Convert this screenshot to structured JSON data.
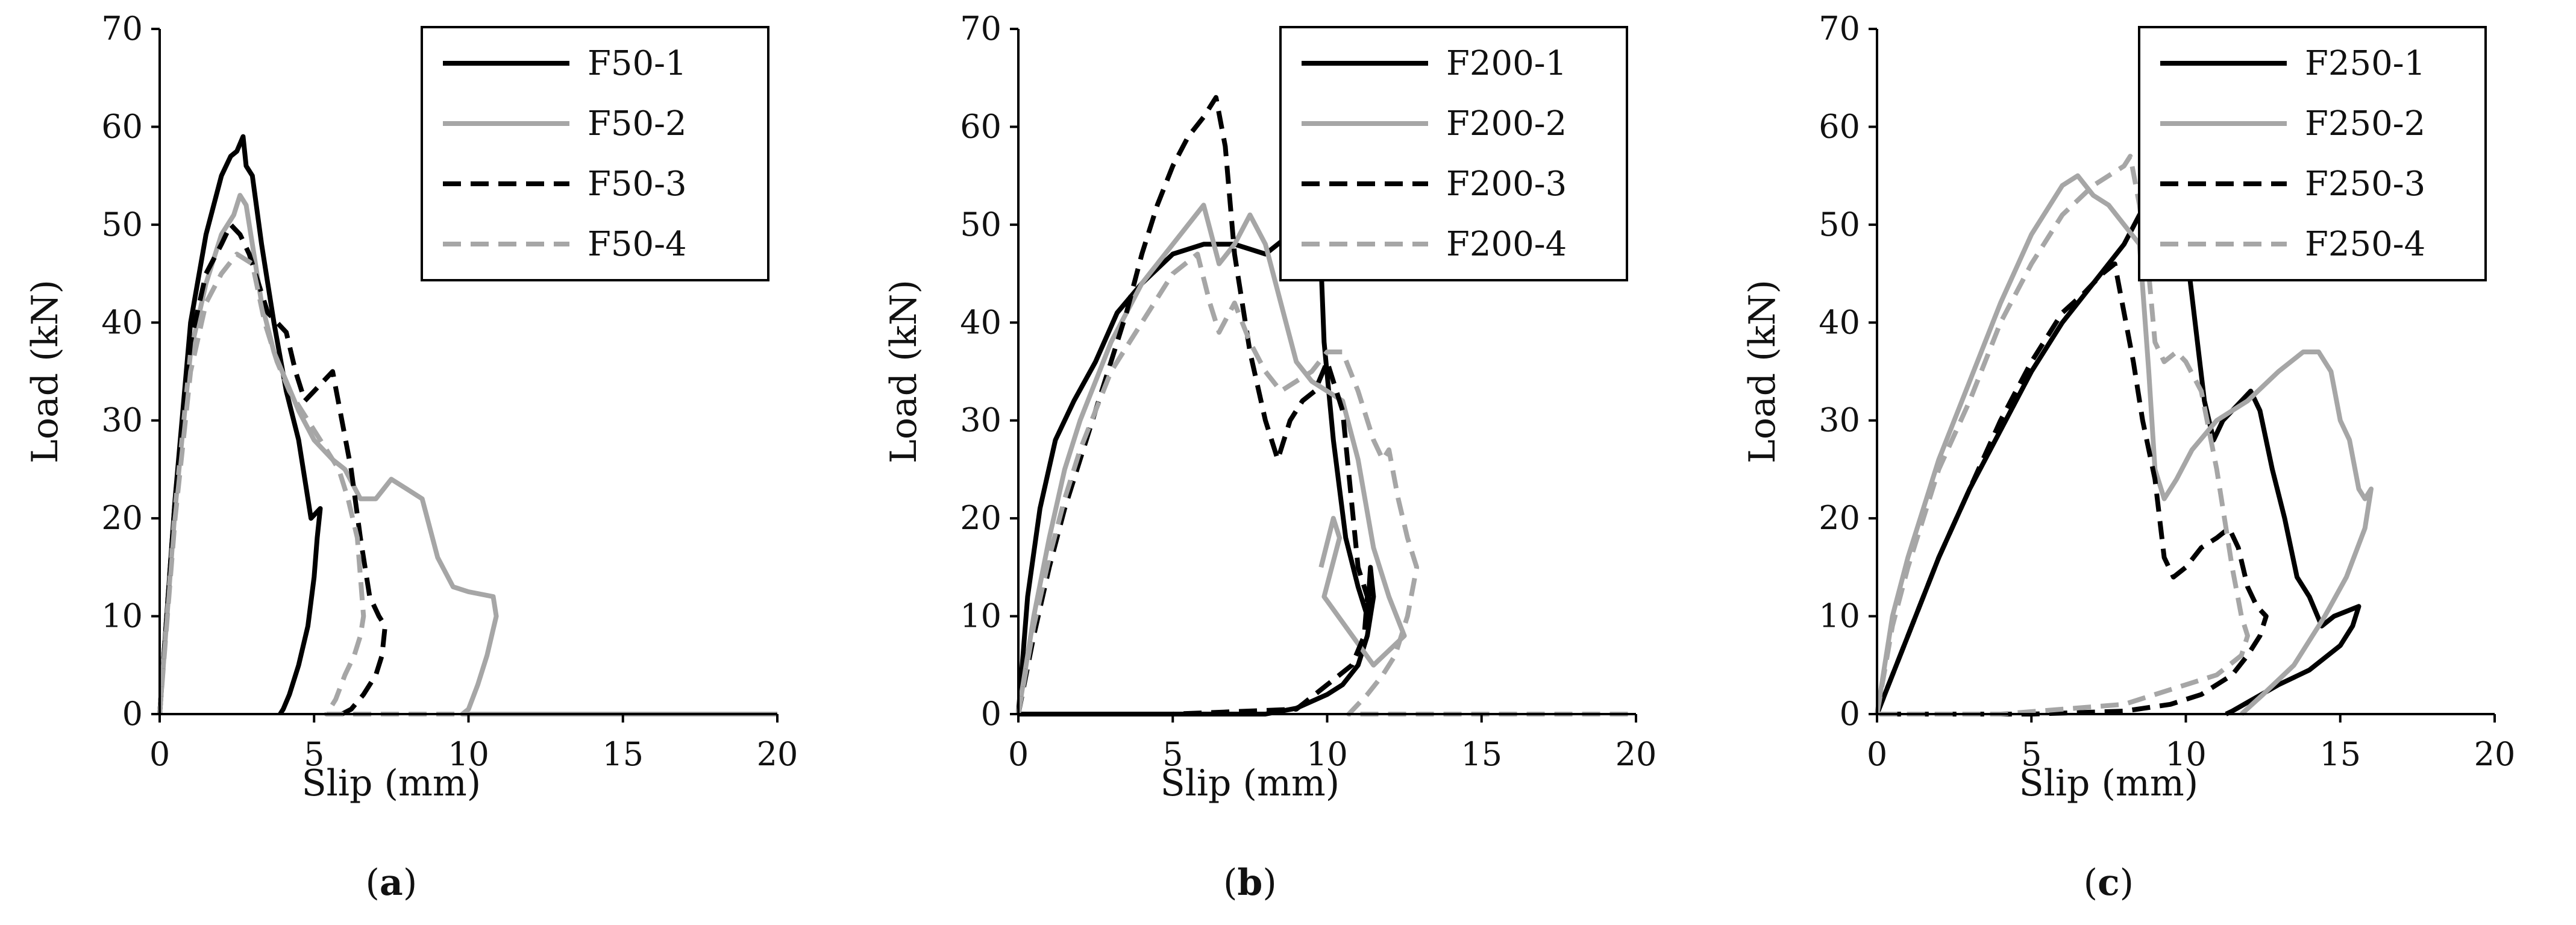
{
  "chart_data": [
    {
      "type": "line",
      "panel_id": "a",
      "caption": {
        "open": "(",
        "label": "a",
        "close": ")"
      },
      "xlabel": "Slip (mm)",
      "ylabel": "Load (kN)",
      "xlim": [
        0,
        20
      ],
      "ylim": [
        0,
        70
      ],
      "xticks": [
        0,
        5,
        10,
        15,
        20
      ],
      "yticks": [
        0,
        10,
        20,
        30,
        40,
        50,
        60,
        70
      ],
      "grid": false,
      "legend": "top-right",
      "series": [
        {
          "name": "F50-1",
          "color": "#000000",
          "dash": "solid",
          "x": [
            0,
            0.5,
            1.0,
            1.5,
            2.0,
            2.3,
            2.5,
            2.7,
            2.8,
            3.0,
            3.3,
            3.7,
            4.1,
            4.5,
            4.8,
            4.9,
            5.05,
            5.2,
            5.1,
            5.0,
            4.8,
            4.5,
            4.2,
            4.0,
            3.9
          ],
          "y": [
            0,
            22,
            40,
            49,
            55,
            57,
            57.5,
            59,
            56,
            55,
            48,
            40,
            33,
            28,
            22,
            20,
            20.5,
            21,
            18,
            14,
            9,
            5,
            2,
            0.5,
            0
          ]
        },
        {
          "name": "F50-2",
          "color": "#a6a6a6",
          "dash": "solid",
          "x": [
            0,
            0.5,
            1.0,
            1.5,
            2.0,
            2.4,
            2.6,
            2.8,
            3.0,
            3.3,
            3.7,
            4.1,
            4.5,
            5.0,
            5.6,
            6.0,
            6.5,
            7.0,
            7.5,
            8.0,
            8.5,
            9.0,
            9.5,
            10.0,
            10.8,
            10.9,
            10.6,
            10.3,
            10.0,
            9.8,
            12.0,
            15.0,
            20.0
          ],
          "y": [
            0,
            21,
            37,
            44,
            49,
            51,
            53,
            52,
            48,
            42,
            37,
            34,
            31,
            28,
            26,
            25,
            22,
            22,
            24,
            23,
            22,
            16,
            13,
            12.5,
            12,
            10,
            6,
            3,
            0.5,
            0,
            0,
            0,
            0
          ]
        },
        {
          "name": "F50-3",
          "color": "#000000",
          "dash": "dashed",
          "x": [
            0,
            0.5,
            1.0,
            1.5,
            2.0,
            2.3,
            2.6,
            2.9,
            3.2,
            3.5,
            3.8,
            4.1,
            4.4,
            4.7,
            5.0,
            5.3,
            5.6,
            5.9,
            6.2,
            6.5,
            6.8,
            7.1,
            7.3,
            7.2,
            7.0,
            6.6,
            6.2,
            5.9
          ],
          "y": [
            0,
            22,
            38,
            45,
            48,
            50,
            49,
            47,
            44,
            41,
            40,
            39,
            35,
            32,
            33,
            34,
            35,
            30,
            25,
            18,
            12,
            10,
            9,
            6,
            4,
            2,
            0.5,
            0
          ]
        },
        {
          "name": "F50-4",
          "color": "#a6a6a6",
          "dash": "dashed",
          "x": [
            0,
            0.5,
            1.0,
            1.5,
            2.0,
            2.5,
            3.0,
            3.4,
            3.8,
            4.2,
            4.6,
            5.0,
            5.4,
            5.8,
            6.1,
            6.4,
            6.6,
            6.5,
            6.3,
            6.0,
            5.7,
            5.4,
            10.0,
            15.0,
            20.0
          ],
          "y": [
            0,
            20,
            35,
            42,
            45,
            47,
            46,
            40,
            36,
            33,
            31,
            29,
            27,
            25,
            22,
            18,
            10,
            8,
            6,
            4,
            1.5,
            0,
            0,
            0,
            0
          ]
        }
      ]
    },
    {
      "type": "line",
      "panel_id": "b",
      "caption": {
        "open": "(",
        "label": "b",
        "close": ")"
      },
      "xlabel": "Slip (mm)",
      "ylabel": "Load (kN)",
      "xlim": [
        0,
        20
      ],
      "ylim": [
        0,
        70
      ],
      "xticks": [
        0,
        5,
        10,
        15,
        20
      ],
      "yticks": [
        0,
        10,
        20,
        30,
        40,
        50,
        60,
        70
      ],
      "grid": false,
      "legend": "top-right",
      "series": [
        {
          "name": "F200-1",
          "color": "#000000",
          "dash": "solid",
          "x": [
            0,
            0.3,
            0.7,
            1.2,
            1.8,
            2.5,
            3.2,
            4.0,
            5.0,
            6.0,
            7.0,
            8.0,
            8.8,
            9.4,
            9.7,
            9.8,
            9.9,
            10.2,
            10.6,
            11.0,
            11.3,
            11.4,
            11.5,
            11.3,
            11.0,
            10.5,
            10.0,
            9.0,
            8.0,
            5.0,
            0
          ],
          "y": [
            0,
            12,
            21,
            28,
            32,
            36,
            41,
            44,
            47,
            48,
            48,
            47,
            49,
            52,
            53,
            46,
            38,
            28,
            18,
            13,
            10,
            15,
            12,
            8,
            5,
            3,
            2,
            0.6,
            0,
            0,
            0
          ]
        },
        {
          "name": "F200-2",
          "color": "#a6a6a6",
          "dash": "solid",
          "x": [
            0,
            0.5,
            1.0,
            1.5,
            2.0,
            3.0,
            4.0,
            5.0,
            5.5,
            6.0,
            6.5,
            7.0,
            7.5,
            8.0,
            8.5,
            9.0,
            9.5,
            10.0,
            10.5,
            11.0,
            11.5,
            12.0,
            12.5,
            11.5,
            9.9,
            10.4,
            10.2,
            9.8
          ],
          "y": [
            0,
            10,
            18,
            25,
            30,
            38,
            44,
            48,
            50,
            52,
            46,
            48,
            51,
            48,
            42,
            36,
            34,
            33,
            32,
            26,
            17,
            12,
            8,
            5,
            12,
            18,
            20,
            15
          ]
        },
        {
          "name": "F200-3",
          "color": "#000000",
          "dash": "dashed",
          "x": [
            0,
            0.5,
            1.0,
            1.5,
            2.0,
            2.5,
            3.0,
            3.5,
            4.0,
            4.5,
            5.0,
            5.5,
            6.0,
            6.4,
            6.7,
            7.0,
            7.5,
            8.0,
            8.4,
            8.8,
            9.2,
            9.6,
            10.0,
            10.5,
            11.0,
            11.3,
            11.2,
            10.8,
            10.0,
            9.0,
            5.0,
            0
          ],
          "y": [
            0,
            8,
            15,
            21,
            26,
            31,
            36,
            41,
            47,
            52,
            56,
            59,
            61,
            63,
            58,
            47,
            37,
            30,
            26,
            30,
            32,
            33,
            36,
            31,
            15,
            12,
            8,
            5,
            3,
            0.5,
            0,
            0
          ]
        },
        {
          "name": "F200-4",
          "color": "#a6a6a6",
          "dash": "dashed",
          "x": [
            0,
            0.5,
            1.0,
            1.5,
            2.0,
            3.0,
            4.0,
            5.0,
            5.8,
            6.2,
            6.5,
            7.0,
            7.5,
            8.0,
            8.5,
            9.0,
            9.5,
            10.0,
            10.5,
            11.0,
            11.5,
            11.8,
            12.0,
            12.3,
            12.6,
            12.9,
            12.6,
            12.2,
            11.8,
            11.3,
            10.7,
            15.0,
            20.0
          ],
          "y": [
            0,
            9,
            16,
            22,
            27,
            35,
            40,
            45,
            47,
            42,
            39,
            42,
            38,
            35,
            33,
            34,
            35,
            37,
            37,
            33,
            28,
            26,
            27,
            22,
            18,
            15,
            10,
            6,
            4,
            2,
            0,
            0,
            0
          ]
        }
      ]
    },
    {
      "type": "line",
      "panel_id": "c",
      "caption": {
        "open": "(",
        "label": "c",
        "close": ")"
      },
      "xlabel": "Slip (mm)",
      "ylabel": "Load (kN)",
      "xlim": [
        0,
        20
      ],
      "ylim": [
        0,
        70
      ],
      "xticks": [
        0,
        5,
        10,
        15,
        20
      ],
      "yticks": [
        0,
        10,
        20,
        30,
        40,
        50,
        60,
        70
      ],
      "grid": false,
      "legend": "top-right",
      "series": [
        {
          "name": "F250-1",
          "color": "#000000",
          "dash": "solid",
          "x": [
            0,
            1.0,
            2.0,
            3.0,
            4.0,
            5.0,
            6.0,
            7.0,
            8.0,
            8.5,
            9.0,
            9.3,
            9.5,
            9.7,
            10.0,
            10.3,
            10.6,
            10.9,
            11.2,
            11.5,
            11.8,
            12.1,
            12.4,
            12.8,
            13.2,
            13.6,
            14.0,
            14.4,
            14.8,
            15.2,
            15.6,
            15.4,
            15.0,
            14.0,
            13.0,
            12.0,
            11.5,
            11.3
          ],
          "y": [
            0,
            8,
            16,
            23,
            29,
            35,
            40,
            44,
            48,
            51,
            53,
            54,
            55,
            54,
            48,
            40,
            32,
            28,
            30,
            31,
            32,
            33,
            31,
            25,
            20,
            14,
            12,
            9,
            10,
            10.5,
            11,
            9,
            7,
            4.5,
            3,
            1.2,
            0.3,
            0
          ]
        },
        {
          "name": "F250-2",
          "color": "#a6a6a6",
          "dash": "solid",
          "x": [
            0,
            0.5,
            1.0,
            1.5,
            2.0,
            3.0,
            4.0,
            5.0,
            6.0,
            6.5,
            7.0,
            7.5,
            8.0,
            8.5,
            8.8,
            9.0,
            9.3,
            9.7,
            10.2,
            11.0,
            12.0,
            13.0,
            13.8,
            14.3,
            14.7,
            15.0,
            15.3,
            15.6,
            15.8,
            16.0,
            15.8,
            15.2,
            14.5,
            13.5,
            12.5,
            11.8
          ],
          "y": [
            0,
            10,
            16,
            21,
            26,
            34,
            42,
            49,
            54,
            55,
            53,
            52,
            50,
            48,
            35,
            25,
            22,
            24,
            27,
            30,
            32,
            35,
            37,
            37,
            35,
            30,
            28,
            23,
            22,
            23,
            19,
            14,
            10,
            5,
            2,
            0
          ]
        },
        {
          "name": "F250-3",
          "color": "#000000",
          "dash": "dashed",
          "x": [
            0,
            1.0,
            2.0,
            3.0,
            4.0,
            5.0,
            6.0,
            6.7,
            7.3,
            7.7,
            8.0,
            8.3,
            8.6,
            9.0,
            9.3,
            9.6,
            10.0,
            10.5,
            11.0,
            11.4,
            11.7,
            12.0,
            12.3,
            12.6,
            12.4,
            12.0,
            11.5,
            10.5,
            9.5,
            8.0,
            5.0,
            0
          ],
          "y": [
            0,
            8,
            16,
            23,
            30,
            36,
            41,
            43,
            45,
            46,
            41,
            36,
            30,
            24,
            16,
            14,
            15,
            17,
            18,
            19,
            17,
            13,
            11,
            10,
            8,
            6,
            4,
            2,
            1,
            0.3,
            0,
            0
          ]
        },
        {
          "name": "F250-4",
          "color": "#a6a6a6",
          "dash": "dashed",
          "x": [
            0,
            0.5,
            1.0,
            1.5,
            2.0,
            3.0,
            4.0,
            5.0,
            6.0,
            7.0,
            7.5,
            8.0,
            8.2,
            8.5,
            8.8,
            9.0,
            9.3,
            9.7,
            10.0,
            10.5,
            11.0,
            11.5,
            11.8,
            12.0,
            11.8,
            11.0,
            10.0,
            9.0,
            8.0,
            6.0,
            4.0,
            0
          ],
          "y": [
            0,
            9,
            15,
            20,
            25,
            32,
            40,
            46,
            51,
            54,
            55,
            56,
            57,
            52,
            45,
            38,
            36,
            37,
            36,
            33,
            25,
            15,
            10,
            8,
            6,
            4,
            3,
            2,
            1,
            0.5,
            0,
            0
          ]
        }
      ]
    }
  ]
}
